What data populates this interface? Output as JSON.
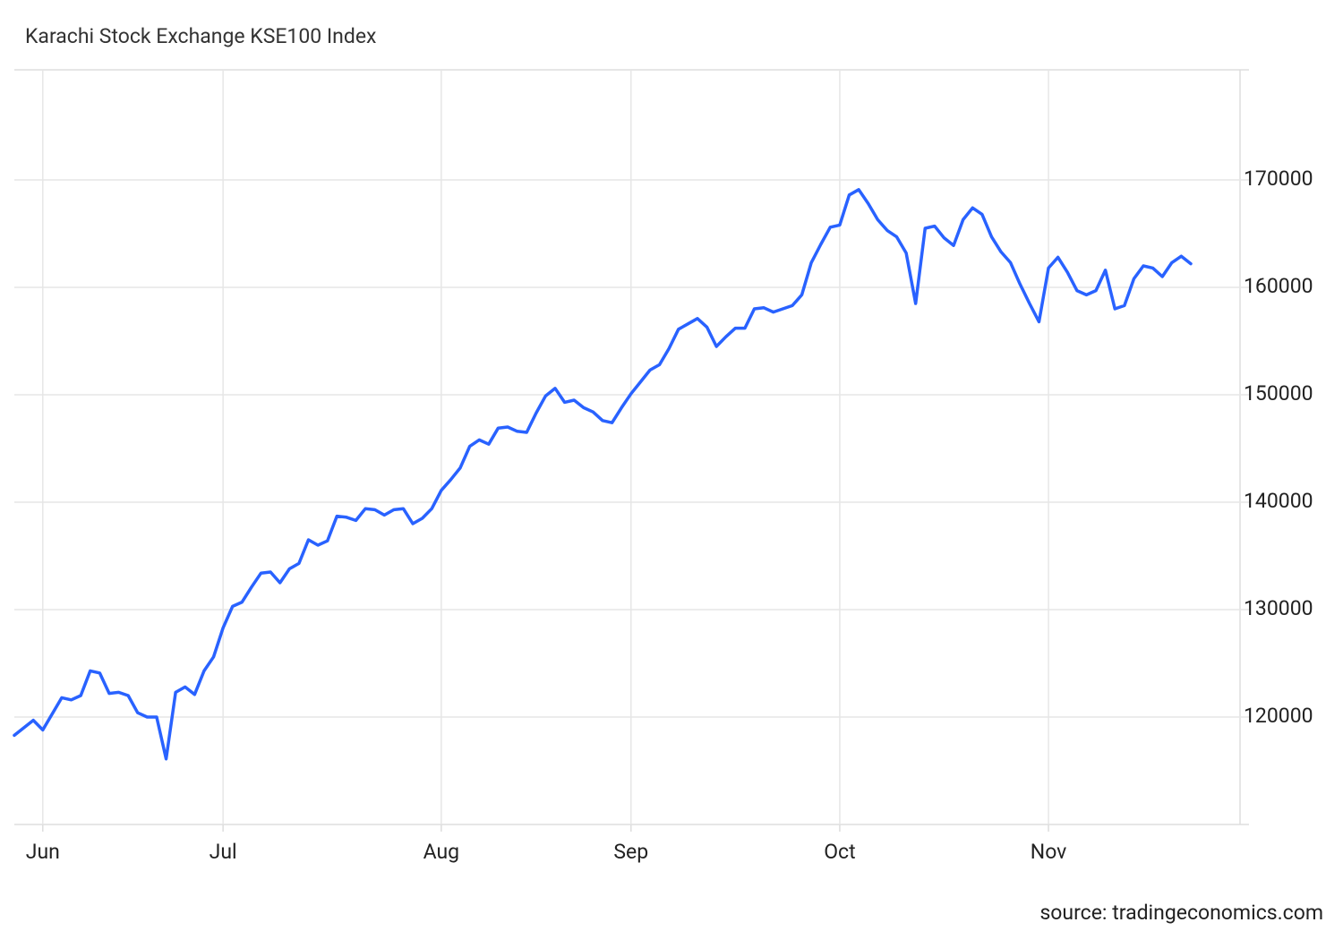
{
  "chart_data": {
    "type": "line",
    "title": "Karachi Stock Exchange KSE100 Index",
    "source": "source: tradingeconomics.com",
    "categories": [
      null,
      null,
      null,
      "Jun",
      null,
      null,
      null,
      null,
      null,
      null,
      null,
      null,
      null,
      null,
      null,
      null,
      null,
      null,
      null,
      null,
      null,
      null,
      "Jul",
      null,
      null,
      null,
      null,
      null,
      null,
      null,
      null,
      null,
      null,
      null,
      null,
      null,
      null,
      null,
      null,
      null,
      null,
      null,
      null,
      null,
      null,
      "Aug",
      null,
      null,
      null,
      null,
      null,
      null,
      null,
      null,
      null,
      null,
      null,
      null,
      null,
      null,
      null,
      null,
      null,
      null,
      null,
      "Sep",
      null,
      null,
      null,
      null,
      null,
      null,
      null,
      null,
      null,
      null,
      null,
      null,
      null,
      null,
      null,
      null,
      null,
      null,
      null,
      null,
      null,
      "Oct",
      null,
      null,
      null,
      null,
      null,
      null,
      null,
      null,
      null,
      null,
      null,
      null,
      null,
      null,
      null,
      null,
      null,
      null,
      null,
      null,
      null,
      "Nov",
      null,
      null,
      null,
      null,
      null,
      null,
      null,
      null,
      null,
      null,
      null,
      null,
      null,
      null,
      null
    ],
    "series": [
      {
        "color": "#2962ff",
        "values": [
          118300,
          119000,
          119700,
          118800,
          120300,
          121800,
          121600,
          122000,
          124300,
          124100,
          122200,
          122300,
          122000,
          120400,
          120000,
          120000,
          116100,
          122300,
          122800,
          122100,
          124300,
          125600,
          128300,
          130300,
          130700,
          132100,
          133400,
          133500,
          132500,
          133800,
          134300,
          136500,
          136000,
          136400,
          138700,
          138600,
          138300,
          139400,
          139300,
          138800,
          139300,
          139400,
          138000,
          138500,
          139400,
          141100,
          142100,
          143200,
          145200,
          145800,
          145400,
          146900,
          147000,
          146600,
          146500,
          148300,
          149900,
          150600,
          149300,
          149500,
          148800,
          148400,
          147600,
          147400,
          148800,
          150100,
          151200,
          152300,
          152800,
          154300,
          156100,
          156600,
          157100,
          156300,
          154500,
          155400,
          156200,
          156200,
          158000,
          158100,
          157700,
          158000,
          158300,
          159300,
          162300,
          164000,
          165600,
          165800,
          168600,
          169100,
          167800,
          166300,
          165300,
          164700,
          163200,
          158500,
          165500,
          165700,
          164600,
          163900,
          166300,
          167400,
          166800,
          164700,
          163300,
          162300,
          160300,
          158500,
          156800,
          161800,
          162800,
          161400,
          159700,
          159300,
          159700,
          161600,
          158000,
          158300,
          160800,
          162000,
          161800,
          161000,
          162300,
          162900,
          162200
        ]
      }
    ],
    "ylim": [
      110000,
      180250
    ],
    "yticks": [
      120000,
      130000,
      140000,
      150000,
      160000,
      170000
    ],
    "y_axis_side": "right",
    "grid": true
  }
}
